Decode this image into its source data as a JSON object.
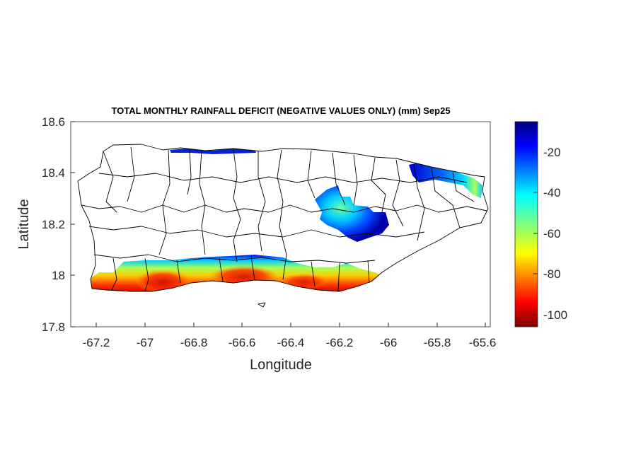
{
  "chart_data": {
    "type": "heatmap",
    "title": "TOTAL MONTHLY RAINFALL DEFICIT (NEGATIVE VALUES ONLY) (mm) Sep25",
    "xlabel": "Longitude",
    "ylabel": "Latitude",
    "xlim": [
      -67.3,
      -65.58
    ],
    "ylim": [
      17.8,
      18.6
    ],
    "x_ticks": [
      "-67.2",
      "-67",
      "-66.8",
      "-66.6",
      "-66.4",
      "-66.2",
      "-66",
      "-65.8",
      "-65.6"
    ],
    "y_ticks": [
      "18.6",
      "18.4",
      "18.2",
      "18",
      "17.8"
    ],
    "colorbar": {
      "range": [
        -105,
        -5
      ],
      "ticks": [
        "-20",
        "-40",
        "-60",
        "-80",
        "-100"
      ],
      "colormap": "jet"
    },
    "regions": [
      {
        "name": "south-coast",
        "lon_range": [
          -67.19,
          -66.0
        ],
        "lat_range": [
          17.93,
          18.09
        ],
        "min_value": -100
      },
      {
        "name": "central-east",
        "lon_range": [
          -66.29,
          -65.99
        ],
        "lat_range": [
          18.13,
          18.35
        ],
        "min_value": -55
      },
      {
        "name": "northeast",
        "lon_range": [
          -65.93,
          -65.62
        ],
        "lat_range": [
          18.32,
          18.45
        ],
        "min_value": -60
      },
      {
        "name": "north-coast",
        "lon_range": [
          -66.9,
          -66.53
        ],
        "lat_range": [
          18.49,
          18.5
        ],
        "min_value": -20
      }
    ],
    "grid": false
  },
  "colors": {
    "ocean": "#ffffff",
    "outline": "#000000"
  }
}
